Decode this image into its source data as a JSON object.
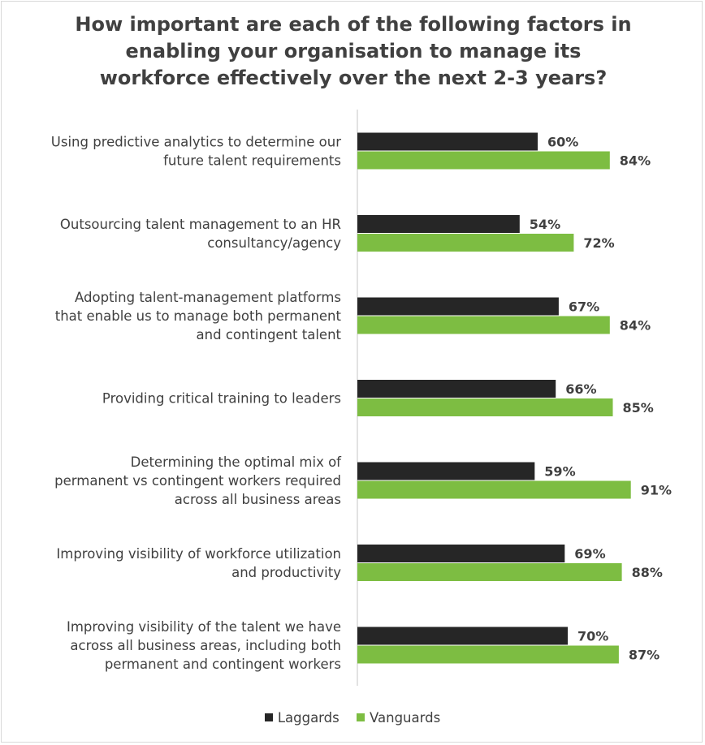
{
  "chart_data": {
    "type": "bar",
    "orientation": "horizontal",
    "title_lines": [
      "How important are each of the following factors in",
      "enabling your organisation to manage its",
      "workforce effectively over the next 2-3 years?"
    ],
    "categories": [
      [
        "Using predictive analytics to determine our",
        "future talent requirements"
      ],
      [
        "Outsourcing talent management to an HR",
        "consultancy/agency"
      ],
      [
        "Adopting talent-management platforms",
        "that enable us to manage both permanent",
        "and contingent talent"
      ],
      [
        "Providing critical training to leaders"
      ],
      [
        "Determining the optimal mix of",
        "permanent vs contingent workers required",
        "across all business areas"
      ],
      [
        "Improving visibility of workforce utilization",
        "and productivity"
      ],
      [
        "Improving visibility of the talent we have",
        "across all business areas, including both",
        "permanent and contingent workers"
      ]
    ],
    "series": [
      {
        "name": "Laggards",
        "color": "#262626",
        "values": [
          60,
          54,
          67,
          66,
          59,
          69,
          70
        ],
        "labels": [
          "60%",
          "54%",
          "67%",
          "66%",
          "59%",
          "69%",
          "70%"
        ]
      },
      {
        "name": "Vanguards",
        "color": "#7dbd42",
        "values": [
          84,
          72,
          84,
          85,
          91,
          88,
          87
        ],
        "labels": [
          "84%",
          "72%",
          "84%",
          "85%",
          "91%",
          "88%",
          "87%"
        ]
      }
    ],
    "xlim": [
      0,
      100
    ],
    "value_suffix": "%",
    "legend_position": "bottom"
  }
}
